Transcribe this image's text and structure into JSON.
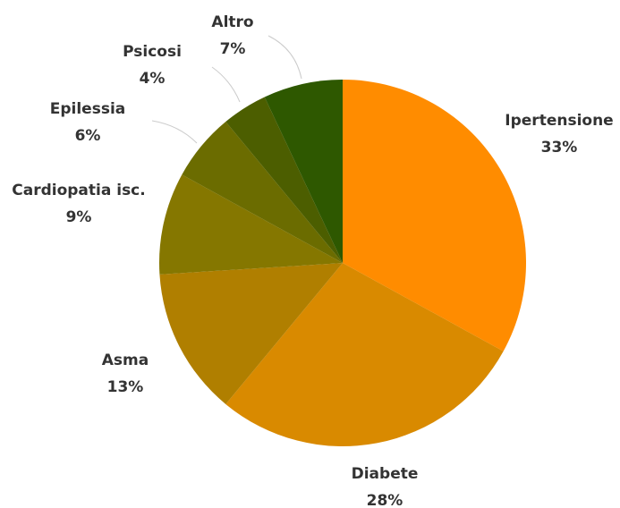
{
  "chart_data": {
    "type": "pie",
    "categories": [
      "Ipertensione",
      "Diabete",
      "Asma",
      "Cardiopatia isc.",
      "Epilessia",
      "Psicosi",
      "Altro"
    ],
    "values": [
      33,
      28,
      13,
      9,
      6,
      4,
      7
    ],
    "value_labels": [
      "33%",
      "28%",
      "13%",
      "9%",
      "6%",
      "4%",
      "7%"
    ],
    "colors": [
      "#ff8c00",
      "#d98a00",
      "#b07f00",
      "#857700",
      "#6b6c00",
      "#4c5e00",
      "#2e5800"
    ]
  }
}
